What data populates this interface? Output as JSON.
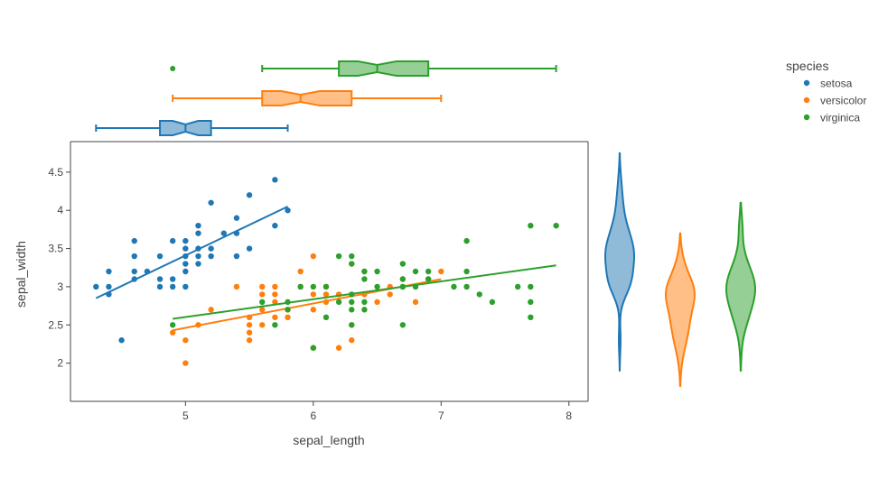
{
  "chart_data": {
    "type": "scatter",
    "xlabel": "sepal_length",
    "ylabel": "sepal_width",
    "xlim": [
      4.1,
      8.15
    ],
    "ylim": [
      1.5,
      4.9
    ],
    "x_ticks": [
      5,
      6,
      7,
      8
    ],
    "y_ticks": [
      2,
      2.5,
      3,
      3.5,
      4,
      4.5
    ],
    "grid": false,
    "legend": {
      "title": "species",
      "placement": "top-right",
      "entries": [
        "setosa",
        "versicolor",
        "virginica"
      ]
    },
    "series": [
      {
        "name": "setosa",
        "color": "#1f77b4",
        "points": [
          [
            4.3,
            3.0
          ],
          [
            4.4,
            2.9
          ],
          [
            4.4,
            3.0
          ],
          [
            4.4,
            3.2
          ],
          [
            4.5,
            2.3
          ],
          [
            4.6,
            3.1
          ],
          [
            4.6,
            3.2
          ],
          [
            4.6,
            3.4
          ],
          [
            4.6,
            3.6
          ],
          [
            4.7,
            3.2
          ],
          [
            4.8,
            3.0
          ],
          [
            4.8,
            3.1
          ],
          [
            4.8,
            3.4
          ],
          [
            4.9,
            3.0
          ],
          [
            4.9,
            3.1
          ],
          [
            4.9,
            3.6
          ],
          [
            5.0,
            3.0
          ],
          [
            5.0,
            3.2
          ],
          [
            5.0,
            3.3
          ],
          [
            5.0,
            3.4
          ],
          [
            5.0,
            3.5
          ],
          [
            5.0,
            3.6
          ],
          [
            5.1,
            3.3
          ],
          [
            5.1,
            3.4
          ],
          [
            5.1,
            3.5
          ],
          [
            5.1,
            3.7
          ],
          [
            5.1,
            3.8
          ],
          [
            5.2,
            3.4
          ],
          [
            5.2,
            3.5
          ],
          [
            5.2,
            4.1
          ],
          [
            5.3,
            3.7
          ],
          [
            5.4,
            3.4
          ],
          [
            5.4,
            3.7
          ],
          [
            5.4,
            3.9
          ],
          [
            5.5,
            3.5
          ],
          [
            5.5,
            4.2
          ],
          [
            5.7,
            3.8
          ],
          [
            5.7,
            4.4
          ],
          [
            5.8,
            4.0
          ]
        ],
        "trend": [
          [
            4.3,
            2.85
          ],
          [
            5.8,
            4.05
          ]
        ],
        "box": {
          "min": 4.3,
          "q1": 4.8,
          "median": 5.0,
          "q3": 5.2,
          "max": 5.8,
          "notch_low": 4.9,
          "notch_high": 5.1,
          "outliers": []
        },
        "violin_range": [
          1.9,
          4.75
        ]
      },
      {
        "name": "versicolor",
        "color": "#ff7f0e",
        "points": [
          [
            4.9,
            2.4
          ],
          [
            5.0,
            2.0
          ],
          [
            5.0,
            2.3
          ],
          [
            5.1,
            2.5
          ],
          [
            5.2,
            2.7
          ],
          [
            5.4,
            3.0
          ],
          [
            5.5,
            2.3
          ],
          [
            5.5,
            2.4
          ],
          [
            5.5,
            2.5
          ],
          [
            5.5,
            2.6
          ],
          [
            5.6,
            2.5
          ],
          [
            5.6,
            2.7
          ],
          [
            5.6,
            2.9
          ],
          [
            5.6,
            3.0
          ],
          [
            5.7,
            2.6
          ],
          [
            5.7,
            2.8
          ],
          [
            5.7,
            2.9
          ],
          [
            5.7,
            3.0
          ],
          [
            5.8,
            2.6
          ],
          [
            5.8,
            2.7
          ],
          [
            5.9,
            3.0
          ],
          [
            5.9,
            3.2
          ],
          [
            6.0,
            2.2
          ],
          [
            6.0,
            2.7
          ],
          [
            6.0,
            2.9
          ],
          [
            6.0,
            3.4
          ],
          [
            6.1,
            2.8
          ],
          [
            6.1,
            2.9
          ],
          [
            6.1,
            3.0
          ],
          [
            6.2,
            2.2
          ],
          [
            6.2,
            2.9
          ],
          [
            6.3,
            2.3
          ],
          [
            6.3,
            2.5
          ],
          [
            6.3,
            3.3
          ],
          [
            6.4,
            2.9
          ],
          [
            6.4,
            3.2
          ],
          [
            6.5,
            2.8
          ],
          [
            6.6,
            2.9
          ],
          [
            6.6,
            3.0
          ],
          [
            6.7,
            3.0
          ],
          [
            6.7,
            3.1
          ],
          [
            6.8,
            2.8
          ],
          [
            6.9,
            3.1
          ],
          [
            7.0,
            3.2
          ]
        ],
        "trend": [
          [
            4.9,
            2.43
          ],
          [
            7.0,
            3.1
          ]
        ],
        "box": {
          "min": 4.9,
          "q1": 5.6,
          "median": 5.9,
          "q3": 6.3,
          "max": 7.0,
          "notch_low": 5.75,
          "notch_high": 6.05,
          "outliers": []
        },
        "violin_range": [
          1.7,
          3.7
        ]
      },
      {
        "name": "virginica",
        "color": "#2ca02c",
        "points": [
          [
            4.9,
            2.5
          ],
          [
            5.6,
            2.8
          ],
          [
            5.7,
            2.5
          ],
          [
            5.8,
            2.7
          ],
          [
            5.8,
            2.8
          ],
          [
            5.9,
            3.0
          ],
          [
            6.0,
            2.2
          ],
          [
            6.0,
            3.0
          ],
          [
            6.1,
            2.6
          ],
          [
            6.1,
            3.0
          ],
          [
            6.2,
            2.8
          ],
          [
            6.2,
            3.4
          ],
          [
            6.3,
            2.5
          ],
          [
            6.3,
            2.7
          ],
          [
            6.3,
            2.8
          ],
          [
            6.3,
            2.9
          ],
          [
            6.3,
            3.3
          ],
          [
            6.3,
            3.4
          ],
          [
            6.4,
            2.7
          ],
          [
            6.4,
            2.8
          ],
          [
            6.4,
            3.1
          ],
          [
            6.4,
            3.2
          ],
          [
            6.5,
            3.0
          ],
          [
            6.5,
            3.2
          ],
          [
            6.7,
            2.5
          ],
          [
            6.7,
            3.0
          ],
          [
            6.7,
            3.1
          ],
          [
            6.7,
            3.3
          ],
          [
            6.8,
            3.0
          ],
          [
            6.8,
            3.2
          ],
          [
            6.9,
            3.1
          ],
          [
            6.9,
            3.2
          ],
          [
            7.1,
            3.0
          ],
          [
            7.2,
            3.0
          ],
          [
            7.2,
            3.2
          ],
          [
            7.2,
            3.6
          ],
          [
            7.3,
            2.9
          ],
          [
            7.4,
            2.8
          ],
          [
            7.6,
            3.0
          ],
          [
            7.7,
            2.6
          ],
          [
            7.7,
            2.8
          ],
          [
            7.7,
            3.0
          ],
          [
            7.7,
            3.8
          ],
          [
            7.9,
            3.8
          ]
        ],
        "trend": [
          [
            4.9,
            2.58
          ],
          [
            7.9,
            3.28
          ]
        ],
        "box": {
          "min": 5.6,
          "q1": 6.2,
          "median": 6.5,
          "q3": 6.9,
          "max": 7.9,
          "notch_low": 6.35,
          "notch_high": 6.65,
          "outliers": [
            4.9
          ]
        },
        "violin_range": [
          1.9,
          4.1
        ]
      }
    ]
  }
}
